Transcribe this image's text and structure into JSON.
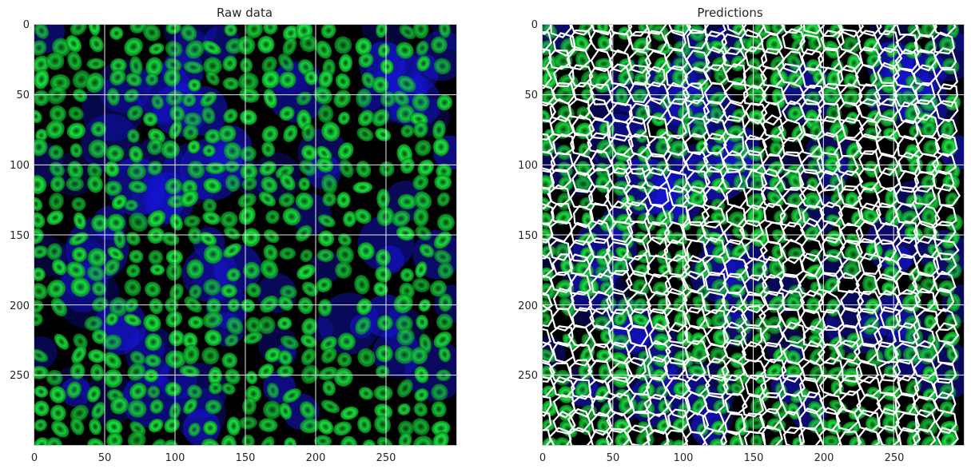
{
  "panels": [
    {
      "id": "raw",
      "title": "Raw data",
      "x_ticks": [
        "0",
        "50",
        "100",
        "150",
        "200",
        "250"
      ],
      "y_ticks": [
        "0",
        "50",
        "100",
        "150",
        "200",
        "250"
      ],
      "overlay": false
    },
    {
      "id": "pred",
      "title": "Predictions",
      "x_ticks": [
        "0",
        "50",
        "100",
        "150",
        "200",
        "250"
      ],
      "y_ticks": [
        "0",
        "50",
        "100",
        "150",
        "200",
        "250"
      ],
      "overlay": true
    }
  ],
  "colors": {
    "nuclei": "#19e640",
    "membrane": "#1a1aff",
    "background": "#000000",
    "grid": "#ffffff",
    "boundary": "#ffffff"
  }
}
